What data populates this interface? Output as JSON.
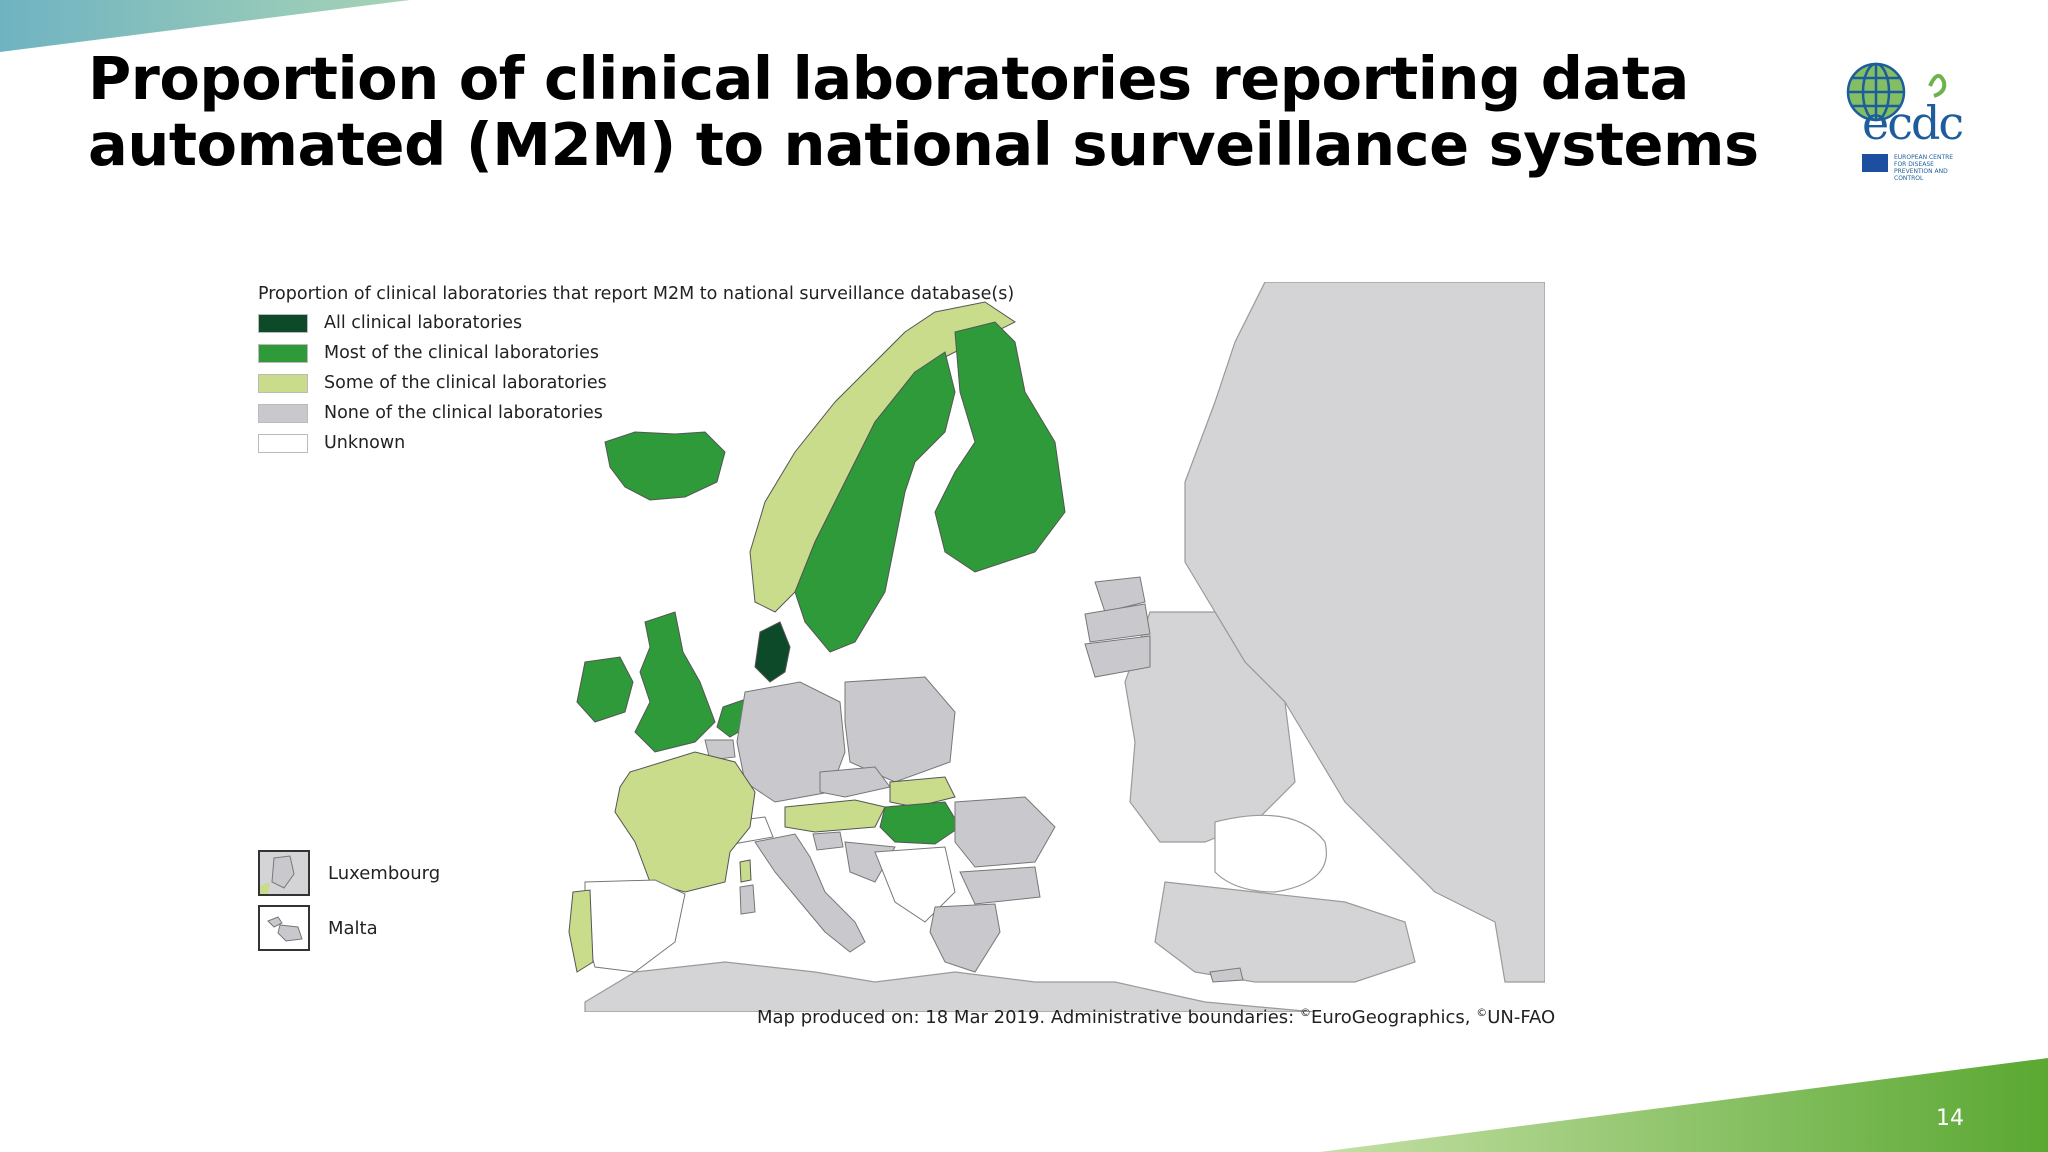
{
  "slide": {
    "title": "Proportion of clinical laboratories reporting data automated (M2M) to national surveillance systems",
    "page_number": "14"
  },
  "logo": {
    "text": "ecdc",
    "subtitle": "European Centre for Disease Prevention and Control"
  },
  "legend": {
    "title": "Proportion of clinical laboratories that report M2M to national surveillance database(s)",
    "items": [
      {
        "label": "All clinical laboratories",
        "color": "#0d4a2a"
      },
      {
        "label": "Most of the clinical laboratories",
        "color": "#2e9a3a"
      },
      {
        "label": "Some of the clinical laboratories",
        "color": "#c9dc8c"
      },
      {
        "label": "None of the clinical laboratories",
        "color": "#c9c9cd"
      },
      {
        "label": "Unknown",
        "color": "#ffffff"
      }
    ]
  },
  "insets": [
    {
      "label": "Luxembourg"
    },
    {
      "label": "Malta"
    }
  ],
  "credit": {
    "prefix": "Map produced on: 18 Mar 2019. Administrative boundaries: ",
    "source1": "EuroGeographics, ",
    "source2": "UN-FAO",
    "copyright": "©"
  },
  "map_regions": [
    {
      "name": "Iceland",
      "category": "Most of the clinical laboratories"
    },
    {
      "name": "Norway",
      "category": "Some of the clinical laboratories"
    },
    {
      "name": "Sweden",
      "category": "Most of the clinical laboratories"
    },
    {
      "name": "Finland",
      "category": "Most of the clinical laboratories"
    },
    {
      "name": "Denmark",
      "category": "All clinical laboratories"
    },
    {
      "name": "Ireland",
      "category": "Most of the clinical laboratories"
    },
    {
      "name": "United Kingdom",
      "category": "Most of the clinical laboratories"
    },
    {
      "name": "Netherlands",
      "category": "Most of the clinical laboratories"
    },
    {
      "name": "France",
      "category": "Some of the clinical laboratories"
    },
    {
      "name": "Portugal",
      "category": "Some of the clinical laboratories"
    },
    {
      "name": "Austria",
      "category": "Some of the clinical laboratories"
    },
    {
      "name": "Slovakia",
      "category": "Some of the clinical laboratories"
    },
    {
      "name": "Hungary",
      "category": "Most of the clinical laboratories"
    },
    {
      "name": "Estonia",
      "category": "None of the clinical laboratories"
    },
    {
      "name": "Latvia",
      "category": "None of the clinical laboratories"
    },
    {
      "name": "Lithuania",
      "category": "None of the clinical laboratories"
    },
    {
      "name": "Poland",
      "category": "None of the clinical laboratories"
    },
    {
      "name": "Germany",
      "category": "None of the clinical laboratories"
    },
    {
      "name": "Belgium",
      "category": "None of the clinical laboratories"
    },
    {
      "name": "Czechia",
      "category": "None of the clinical laboratories"
    },
    {
      "name": "Slovenia",
      "category": "None of the clinical laboratories"
    },
    {
      "name": "Italy",
      "category": "None of the clinical laboratories"
    },
    {
      "name": "Croatia",
      "category": "None of the clinical laboratories"
    },
    {
      "name": "Romania",
      "category": "None of the clinical laboratories"
    },
    {
      "name": "Bulgaria",
      "category": "None of the clinical laboratories"
    },
    {
      "name": "Greece",
      "category": "None of the clinical laboratories"
    },
    {
      "name": "Spain",
      "category": "Unknown"
    },
    {
      "name": "Switzerland",
      "category": "Unknown"
    },
    {
      "name": "Cyprus",
      "category": "None of the clinical laboratories"
    }
  ]
}
